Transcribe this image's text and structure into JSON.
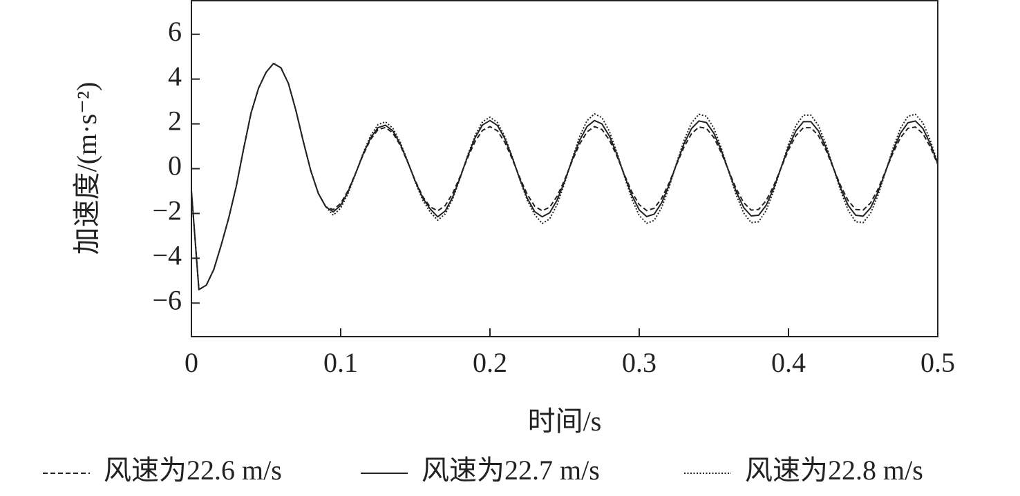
{
  "chart_data": {
    "type": "line",
    "xlabel": "时间/s",
    "ylabel": "加速度/(m·s⁻²)",
    "xlim": [
      0,
      0.5
    ],
    "ylim": [
      -7.5,
      7.5
    ],
    "xticks": [
      0,
      0.1,
      0.2,
      0.3,
      0.4,
      0.5
    ],
    "yticks": [
      {
        "value": -6,
        "label": "−6"
      },
      {
        "value": -4,
        "label": "−4"
      },
      {
        "value": -2,
        "label": "−2"
      },
      0,
      2,
      4,
      6
    ],
    "grid": false,
    "legend": "bottom",
    "x": [
      0,
      0.005,
      0.01,
      0.015,
      0.02,
      0.025,
      0.03,
      0.035,
      0.04,
      0.045,
      0.05,
      0.055,
      0.06,
      0.065,
      0.07,
      0.075,
      0.08,
      0.085,
      0.09,
      0.095,
      0.1,
      0.105,
      0.11,
      0.115,
      0.12,
      0.125,
      0.13,
      0.135,
      0.14,
      0.145,
      0.15,
      0.155,
      0.16,
      0.165,
      0.17,
      0.175,
      0.18,
      0.185,
      0.19,
      0.195,
      0.2,
      0.205,
      0.21,
      0.215,
      0.22,
      0.225,
      0.23,
      0.235,
      0.24,
      0.245,
      0.25,
      0.255,
      0.26,
      0.265,
      0.27,
      0.275,
      0.28,
      0.285,
      0.29,
      0.295,
      0.3,
      0.305,
      0.31,
      0.315,
      0.32,
      0.325,
      0.33,
      0.335,
      0.34,
      0.345,
      0.35,
      0.355,
      0.36,
      0.365,
      0.37,
      0.375,
      0.38,
      0.385,
      0.39,
      0.395,
      0.4,
      0.405,
      0.41,
      0.415,
      0.42,
      0.425,
      0.43,
      0.435,
      0.44,
      0.445,
      0.45,
      0.455,
      0.46,
      0.465,
      0.47,
      0.475,
      0.48,
      0.485,
      0.49,
      0.495,
      0.5
    ],
    "series": [
      {
        "name": "风速为22.6 m/s",
        "color": "#222222",
        "linestyle": "dashed",
        "values": [
          -1.0,
          -5.4,
          -5.2,
          -4.5,
          -3.4,
          -2.2,
          -0.8,
          0.9,
          2.5,
          3.6,
          4.3,
          4.7,
          4.5,
          3.8,
          2.6,
          1.2,
          -0.1,
          -1.1,
          -1.7,
          -1.83,
          -1.55,
          -0.97,
          -0.2,
          0.61,
          1.3,
          1.74,
          1.84,
          1.59,
          1.03,
          0.27,
          -0.54,
          -1.25,
          -1.71,
          -1.88,
          -1.65,
          -1.11,
          -0.35,
          0.48,
          1.21,
          1.71,
          1.88,
          1.69,
          1.17,
          0.42,
          -0.4,
          -1.15,
          -1.68,
          -1.88,
          -1.72,
          -1.23,
          -0.5,
          0.33,
          1.09,
          1.64,
          1.88,
          1.75,
          1.28,
          0.57,
          -0.26,
          -1.03,
          -1.61,
          -1.87,
          -1.77,
          -1.33,
          -0.64,
          0.18,
          0.97,
          1.56,
          1.86,
          1.8,
          1.39,
          0.71,
          -0.11,
          -0.9,
          -1.52,
          -1.85,
          -1.82,
          -1.43,
          -0.78,
          0.03,
          0.84,
          1.48,
          1.83,
          1.83,
          1.48,
          0.84,
          0.04,
          -0.77,
          -1.43,
          -1.82,
          -1.85,
          -1.53,
          -0.91,
          -0.11,
          0.7,
          1.38,
          1.8,
          1.86,
          1.57,
          0.97,
          0.19
        ]
      },
      {
        "name": "风速为22.7 m/s",
        "color": "#222222",
        "linestyle": "solid",
        "values": [
          -1.0,
          -5.4,
          -5.2,
          -4.5,
          -3.4,
          -2.2,
          -0.8,
          0.9,
          2.5,
          3.6,
          4.3,
          4.7,
          4.5,
          3.8,
          2.6,
          1.2,
          -0.1,
          -1.1,
          -1.7,
          -1.93,
          -1.64,
          -1.02,
          -0.21,
          0.64,
          1.37,
          1.83,
          1.94,
          1.68,
          1.09,
          0.29,
          -0.57,
          -1.31,
          -1.8,
          -2.15,
          -1.89,
          -1.27,
          -0.4,
          0.54,
          1.38,
          1.95,
          2.15,
          1.93,
          1.34,
          0.48,
          -0.46,
          -1.32,
          -1.92,
          -2.15,
          -1.97,
          -1.4,
          -0.57,
          0.38,
          1.25,
          1.88,
          2.15,
          2.0,
          1.46,
          0.65,
          -0.29,
          -1.18,
          -1.84,
          -2.14,
          -2.03,
          -1.53,
          -0.73,
          0.21,
          1.11,
          1.79,
          2.13,
          2.06,
          1.58,
          0.81,
          -0.12,
          -1.03,
          -1.74,
          -2.11,
          -2.08,
          -1.64,
          -0.89,
          0.04,
          0.96,
          1.69,
          2.1,
          2.1,
          1.69,
          0.96,
          0.05,
          -0.88,
          -1.64,
          -2.08,
          -2.12,
          -1.75,
          -1.04,
          -0.13,
          0.8,
          1.58,
          2.05,
          2.13,
          1.8,
          1.11,
          0.22
        ]
      },
      {
        "name": "风速为22.8 m/s",
        "color": "#222222",
        "linestyle": "dotted",
        "values": [
          -1.0,
          -5.4,
          -5.2,
          -4.5,
          -3.4,
          -2.2,
          -0.8,
          0.9,
          2.5,
          3.6,
          4.3,
          4.7,
          4.5,
          3.8,
          2.6,
          1.2,
          -0.1,
          -1.1,
          -1.7,
          -2.08,
          -1.76,
          -1.1,
          -0.23,
          0.69,
          1.47,
          1.97,
          2.09,
          1.8,
          1.17,
          0.31,
          -0.61,
          -1.41,
          -1.94,
          -2.3,
          -2.02,
          -1.36,
          -0.43,
          0.58,
          1.48,
          2.09,
          2.3,
          2.06,
          1.43,
          0.52,
          -0.49,
          -1.41,
          -2.05,
          -2.45,
          -2.24,
          -1.6,
          -0.65,
          0.43,
          1.42,
          2.14,
          2.45,
          2.28,
          1.67,
          0.74,
          -0.33,
          -1.34,
          -2.09,
          -2.44,
          -2.31,
          -1.74,
          -0.83,
          0.24,
          1.26,
          2.04,
          2.43,
          2.34,
          1.81,
          0.92,
          -0.14,
          -1.18,
          -1.98,
          -2.41,
          -2.37,
          -1.87,
          -1.01,
          0.04,
          1.09,
          1.93,
          2.39,
          2.39,
          1.93,
          1.1,
          0.05,
          -1.0,
          -1.86,
          -2.37,
          -2.41,
          -1.99,
          -1.18,
          -0.15,
          0.91,
          1.8,
          2.34,
          2.43,
          2.05,
          1.27,
          0.25
        ]
      }
    ]
  }
}
